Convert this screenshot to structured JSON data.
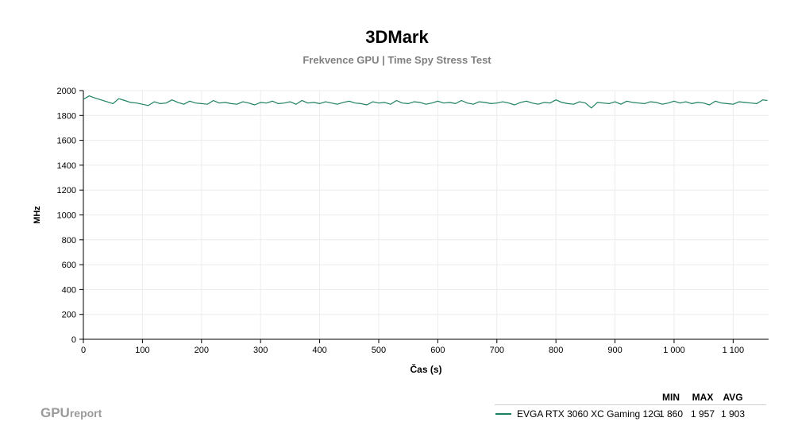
{
  "header": {
    "title": "3DMark",
    "subtitle": "Frekvence GPU | Time Spy Stress Test"
  },
  "chart_data": {
    "type": "line",
    "title": "3DMark",
    "subtitle": "Frekvence GPU | Time Spy Stress Test",
    "xlabel": "Čas (s)",
    "ylabel": "MHz",
    "xlim": [
      0,
      1160
    ],
    "ylim": [
      0,
      2000
    ],
    "x_ticks": [
      0,
      100,
      200,
      300,
      400,
      500,
      600,
      700,
      800,
      900,
      1000,
      1100
    ],
    "x_tick_labels": [
      "0",
      "100",
      "200",
      "300",
      "400",
      "500",
      "600",
      "700",
      "800",
      "900",
      "1 000",
      "1 100"
    ],
    "y_ticks": [
      0,
      200,
      400,
      600,
      800,
      1000,
      1200,
      1400,
      1600,
      1800,
      2000
    ],
    "y_tick_labels": [
      "0",
      "200",
      "400",
      "600",
      "800",
      "1000",
      "1200",
      "1400",
      "1600",
      "1800",
      "2000"
    ],
    "grid": true,
    "series": [
      {
        "name": "EVGA RTX 3060 XC Gaming 12G",
        "color": "#1e8062",
        "x": [
          0,
          10,
          20,
          30,
          40,
          50,
          60,
          70,
          80,
          90,
          100,
          110,
          120,
          130,
          140,
          150,
          160,
          170,
          180,
          190,
          200,
          210,
          220,
          230,
          240,
          250,
          260,
          270,
          280,
          290,
          300,
          310,
          320,
          330,
          340,
          350,
          360,
          370,
          380,
          390,
          400,
          410,
          420,
          430,
          440,
          450,
          460,
          470,
          480,
          490,
          500,
          510,
          520,
          530,
          540,
          550,
          560,
          570,
          580,
          590,
          600,
          610,
          620,
          630,
          640,
          650,
          660,
          670,
          680,
          690,
          700,
          710,
          720,
          730,
          740,
          750,
          760,
          770,
          780,
          790,
          800,
          810,
          820,
          830,
          840,
          850,
          860,
          870,
          880,
          890,
          900,
          910,
          920,
          930,
          940,
          950,
          960,
          970,
          980,
          990,
          1000,
          1010,
          1020,
          1030,
          1040,
          1050,
          1060,
          1070,
          1080,
          1090,
          1100,
          1110,
          1120,
          1130,
          1140,
          1150,
          1158
        ],
        "values": [
          1930,
          1957,
          1940,
          1925,
          1910,
          1895,
          1935,
          1920,
          1905,
          1900,
          1890,
          1880,
          1910,
          1895,
          1900,
          1925,
          1905,
          1890,
          1915,
          1900,
          1895,
          1890,
          1920,
          1900,
          1905,
          1895,
          1890,
          1910,
          1900,
          1885,
          1905,
          1900,
          1915,
          1895,
          1900,
          1910,
          1890,
          1920,
          1900,
          1905,
          1895,
          1910,
          1900,
          1890,
          1905,
          1915,
          1900,
          1895,
          1885,
          1910,
          1900,
          1905,
          1890,
          1920,
          1900,
          1895,
          1910,
          1905,
          1890,
          1900,
          1915,
          1900,
          1905,
          1895,
          1920,
          1900,
          1890,
          1910,
          1905,
          1895,
          1900,
          1910,
          1900,
          1885,
          1905,
          1915,
          1900,
          1890,
          1905,
          1900,
          1925,
          1905,
          1895,
          1890,
          1910,
          1900,
          1860,
          1905,
          1900,
          1895,
          1910,
          1890,
          1915,
          1905,
          1900,
          1895,
          1910,
          1905,
          1890,
          1900,
          1915,
          1900,
          1910,
          1895,
          1905,
          1900,
          1885,
          1915,
          1900,
          1895,
          1890,
          1910,
          1905,
          1900,
          1895,
          1925,
          1920
        ]
      }
    ]
  },
  "legend": {
    "header_min": "MIN",
    "header_max": "MAX",
    "header_avg": "AVG",
    "name": "EVGA RTX 3060 XC Gaming 12G",
    "min": "1 860",
    "max": "1 957",
    "avg": "1 903"
  },
  "brand": {
    "main": "GPU",
    "sub": "report"
  }
}
